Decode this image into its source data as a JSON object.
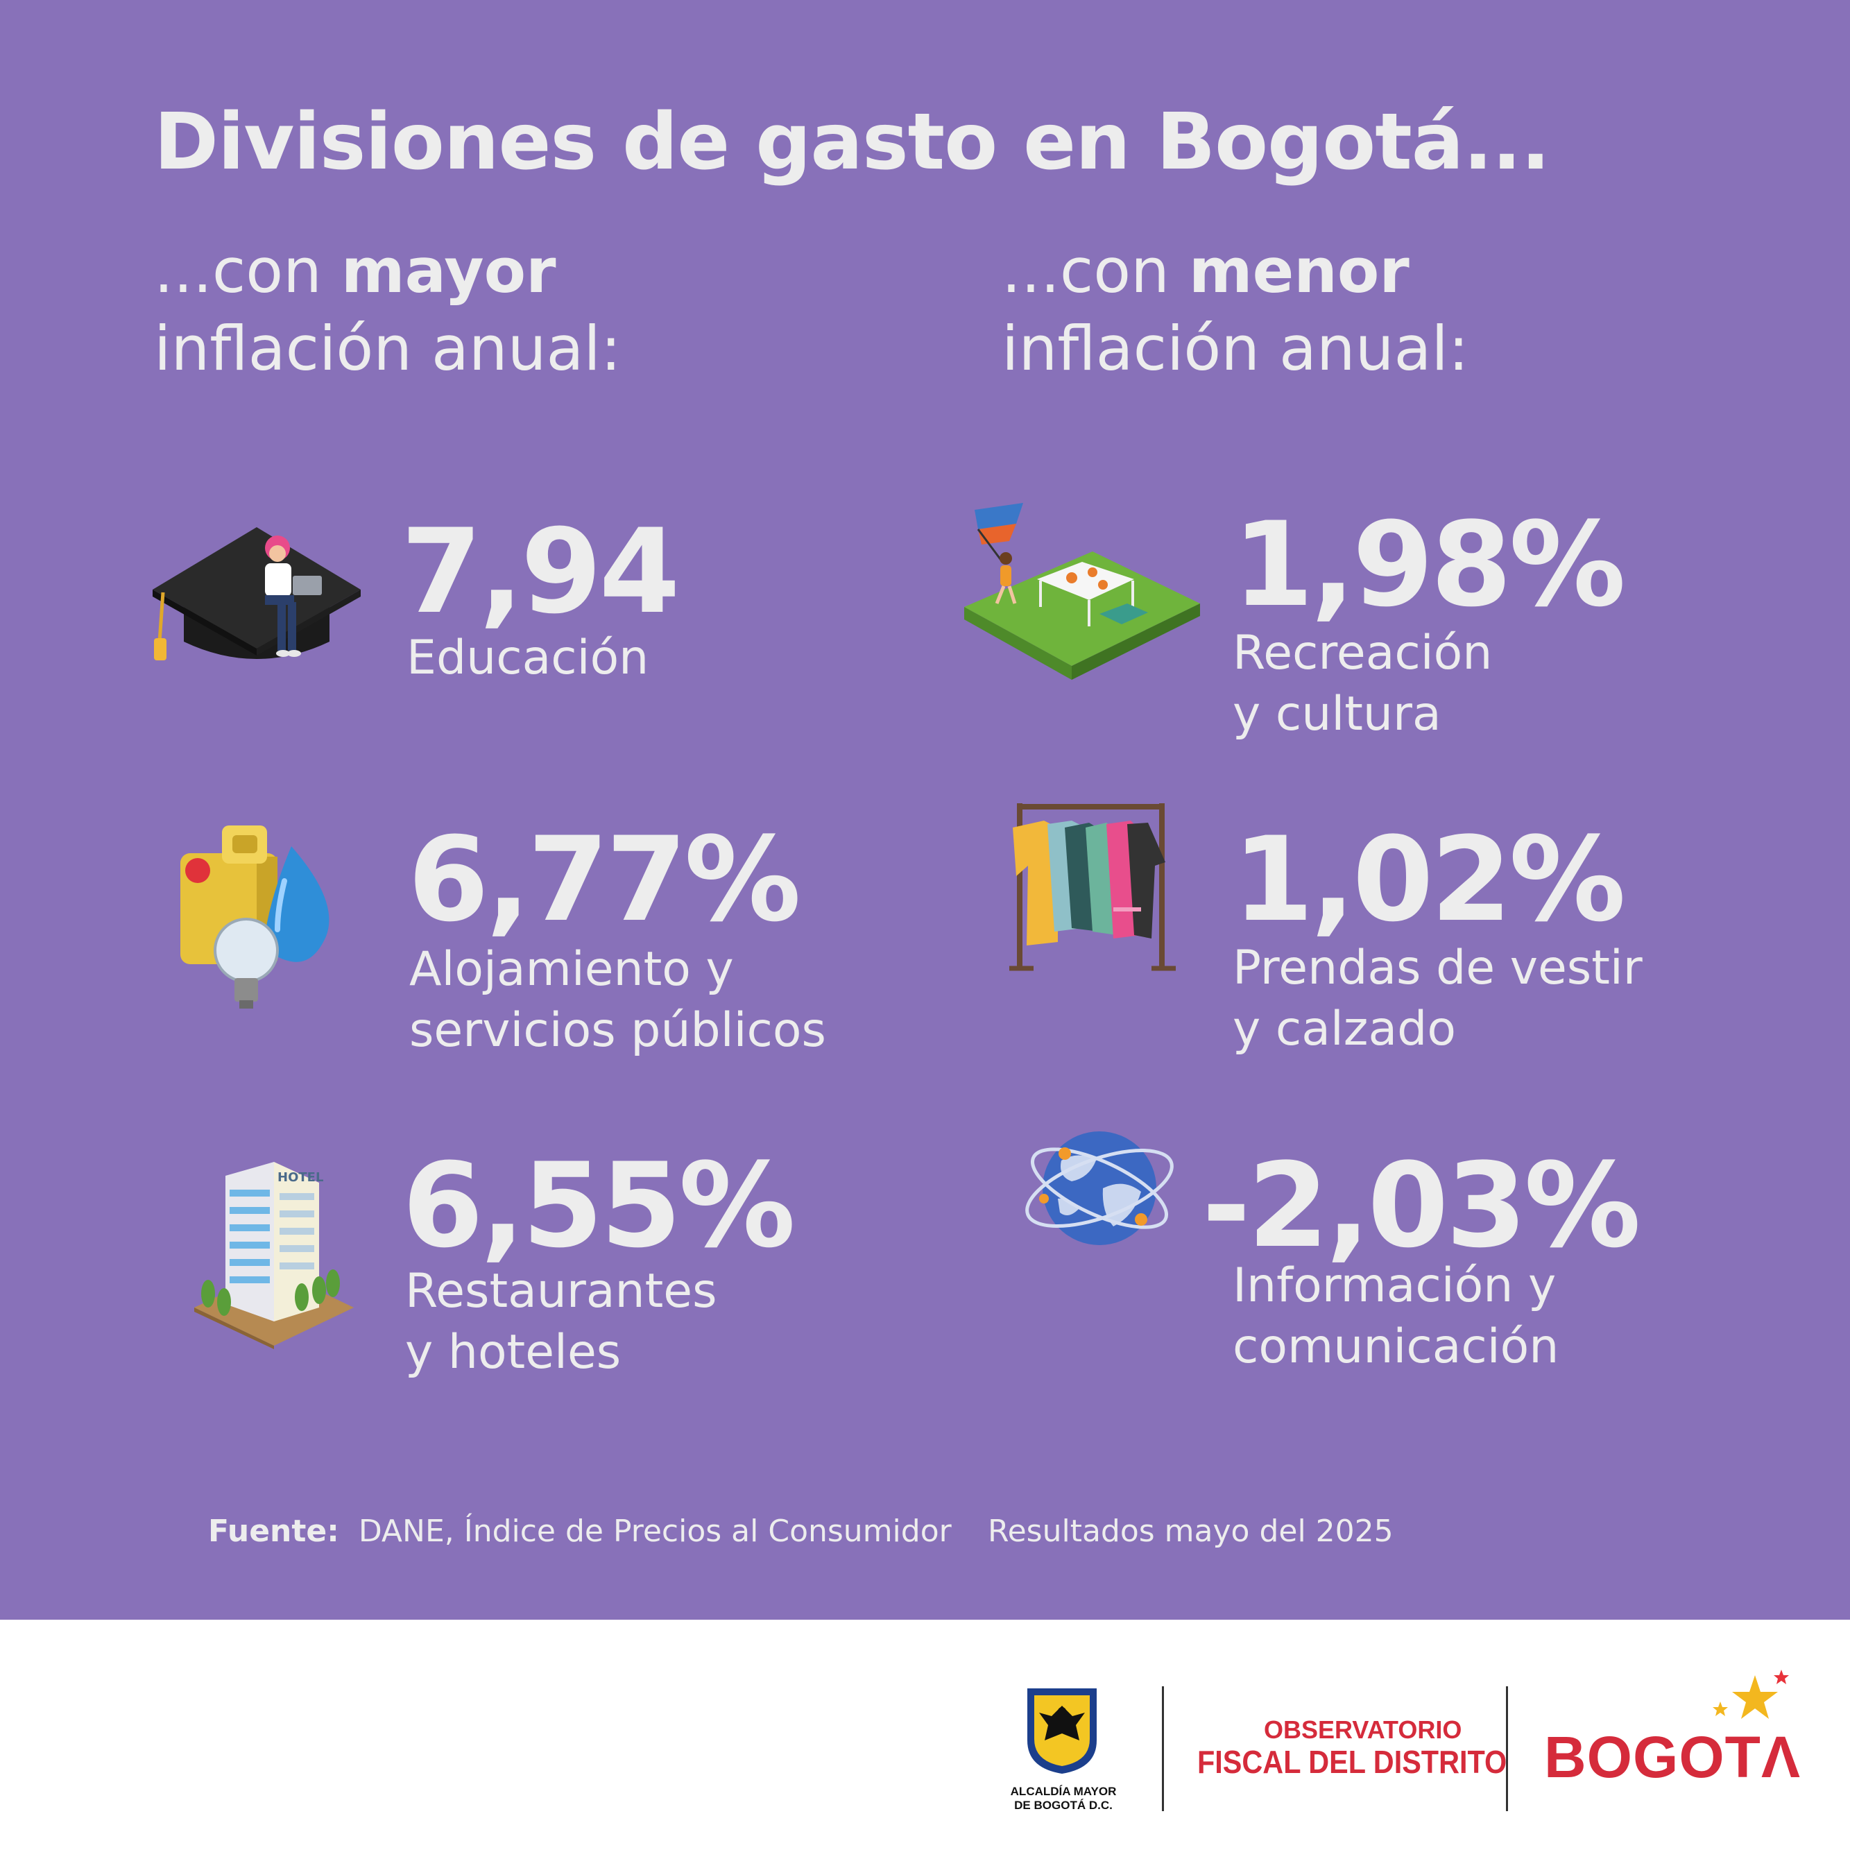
{
  "title": "Divisiones de gasto en Bogotá...",
  "left_heading": {
    "prefix": "...con ",
    "bold": "mayor",
    "line2": "inflación anual:"
  },
  "right_heading": {
    "prefix": "...con ",
    "bold": "menor",
    "line2": "inflación anual:"
  },
  "mayor": [
    {
      "value": "7,94",
      "label_line1": "Educación",
      "label_line2": "",
      "icon": "graduation-cap-icon"
    },
    {
      "value": "6,77%",
      "label_line1": "Alojamiento y",
      "label_line2": "servicios públicos",
      "icon": "utilities-icon"
    },
    {
      "value": "6,55%",
      "label_line1": "Restaurantes",
      "label_line2": "y hoteles",
      "icon": "hotel-icon"
    }
  ],
  "menor": [
    {
      "value": "1,98%",
      "label_line1": "Recreación",
      "label_line2": "y cultura",
      "icon": "park-recreation-icon"
    },
    {
      "value": "1,02%",
      "label_line1": "Prendas de vestir",
      "label_line2": "y calzado",
      "icon": "clothes-rack-icon"
    },
    {
      "value": "-2,03%",
      "label_line1": "Información y",
      "label_line2": "comunicación",
      "icon": "globe-network-icon"
    }
  ],
  "footer": {
    "source_label": "Fuente:",
    "source_text": "DANE, Índice de Precios al Consumidor",
    "period": "Resultados mayo del 2025"
  },
  "logos": {
    "alcaldia_line1": "ALCALDÍA MAYOR",
    "alcaldia_line2": "DE BOGOTÁ D.C.",
    "observatorio_line1": "OBSERVATORIO",
    "observatorio_line2": "FISCAL DEL DISTRITO",
    "bogota": "BOGOTΛ"
  },
  "colors": {
    "background": "#8871b9",
    "text": "#ededed",
    "brand_red": "#d52b3b"
  }
}
